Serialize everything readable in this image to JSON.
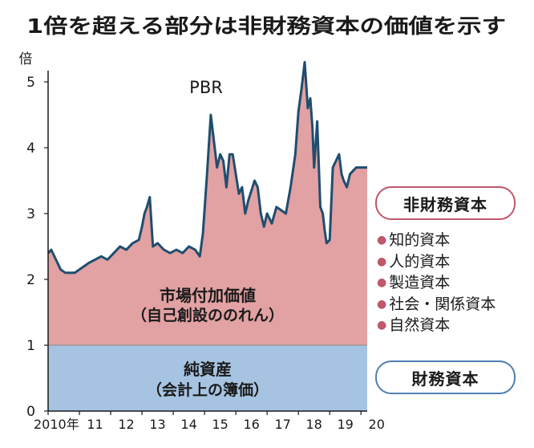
{
  "chart_data": {
    "type": "area",
    "title": "1倍を超える部分は非財務資本の価値を示す",
    "ylabel": "倍",
    "ylim": [
      0,
      5.4
    ],
    "y_ticks": [
      "0",
      "1",
      "2",
      "3",
      "4",
      "5"
    ],
    "x_ticks": [
      "2010年",
      "11",
      "12",
      "13",
      "14",
      "15",
      "16",
      "17",
      "18",
      "19",
      "20"
    ],
    "series": [
      {
        "name": "PBR",
        "x": [
          2010.0,
          2010.1,
          2010.25,
          2010.4,
          2010.55,
          2010.7,
          2010.85,
          2011.0,
          2011.15,
          2011.3,
          2011.5,
          2011.7,
          2011.9,
          2012.1,
          2012.3,
          2012.5,
          2012.7,
          2012.9,
          2013.0,
          2013.08,
          2013.16,
          2013.25,
          2013.35,
          2013.5,
          2013.7,
          2013.9,
          2014.1,
          2014.3,
          2014.5,
          2014.7,
          2014.85,
          2014.95,
          2015.08,
          2015.2,
          2015.3,
          2015.4,
          2015.5,
          2015.6,
          2015.7,
          2015.8,
          2015.9,
          2016.0,
          2016.1,
          2016.2,
          2016.3,
          2016.4,
          2016.5,
          2016.6,
          2016.7,
          2016.8,
          2016.9,
          2017.0,
          2017.15,
          2017.3,
          2017.45,
          2017.6,
          2017.75,
          2017.9,
          2018.0,
          2018.1,
          2018.2,
          2018.3,
          2018.38,
          2018.45,
          2018.5,
          2018.6,
          2018.7,
          2018.78,
          2018.84,
          2018.9,
          2019.0,
          2019.1,
          2019.2,
          2019.3,
          2019.38,
          2019.45,
          2019.55,
          2019.65,
          2019.75,
          2019.85,
          2019.92,
          2020.0,
          2020.1,
          2020.2
        ],
        "values": [
          2.4,
          2.45,
          2.3,
          2.15,
          2.1,
          2.1,
          2.1,
          2.15,
          2.2,
          2.25,
          2.3,
          2.35,
          2.3,
          2.4,
          2.5,
          2.45,
          2.55,
          2.6,
          2.8,
          3.0,
          3.1,
          3.25,
          2.5,
          2.55,
          2.45,
          2.4,
          2.45,
          2.4,
          2.5,
          2.45,
          2.35,
          2.7,
          3.6,
          4.5,
          4.1,
          3.7,
          3.9,
          3.8,
          3.4,
          3.9,
          3.9,
          3.6,
          3.3,
          3.4,
          3.0,
          3.2,
          3.35,
          3.5,
          3.4,
          3.0,
          2.8,
          3.0,
          2.85,
          3.1,
          3.05,
          3.0,
          3.4,
          3.9,
          4.55,
          4.9,
          5.3,
          4.6,
          4.75,
          4.3,
          3.7,
          4.4,
          3.1,
          3.0,
          2.75,
          2.55,
          2.6,
          3.7,
          3.8,
          3.9,
          3.6,
          3.5,
          3.4,
          3.6,
          3.65,
          3.7,
          3.7,
          3.7,
          3.7,
          3.7
        ]
      }
    ],
    "bands": {
      "net_assets": {
        "value": 1,
        "label": "純資産",
        "sublabel": "（会計上の簿価）",
        "color": "#a6c4e2"
      },
      "market_added_value": {
        "label": "市場付加価値",
        "sublabel": "（自己創設ののれん）",
        "color": "#e2a1a3"
      }
    },
    "line_color": "#1f4e6e"
  },
  "legend": {
    "non_financial": {
      "label": "非財務資本",
      "items": [
        "知的資本",
        "人的資本",
        "製造資本",
        "社会・関係資本",
        "自然資本"
      ]
    },
    "financial": {
      "label": "財務資本"
    }
  }
}
